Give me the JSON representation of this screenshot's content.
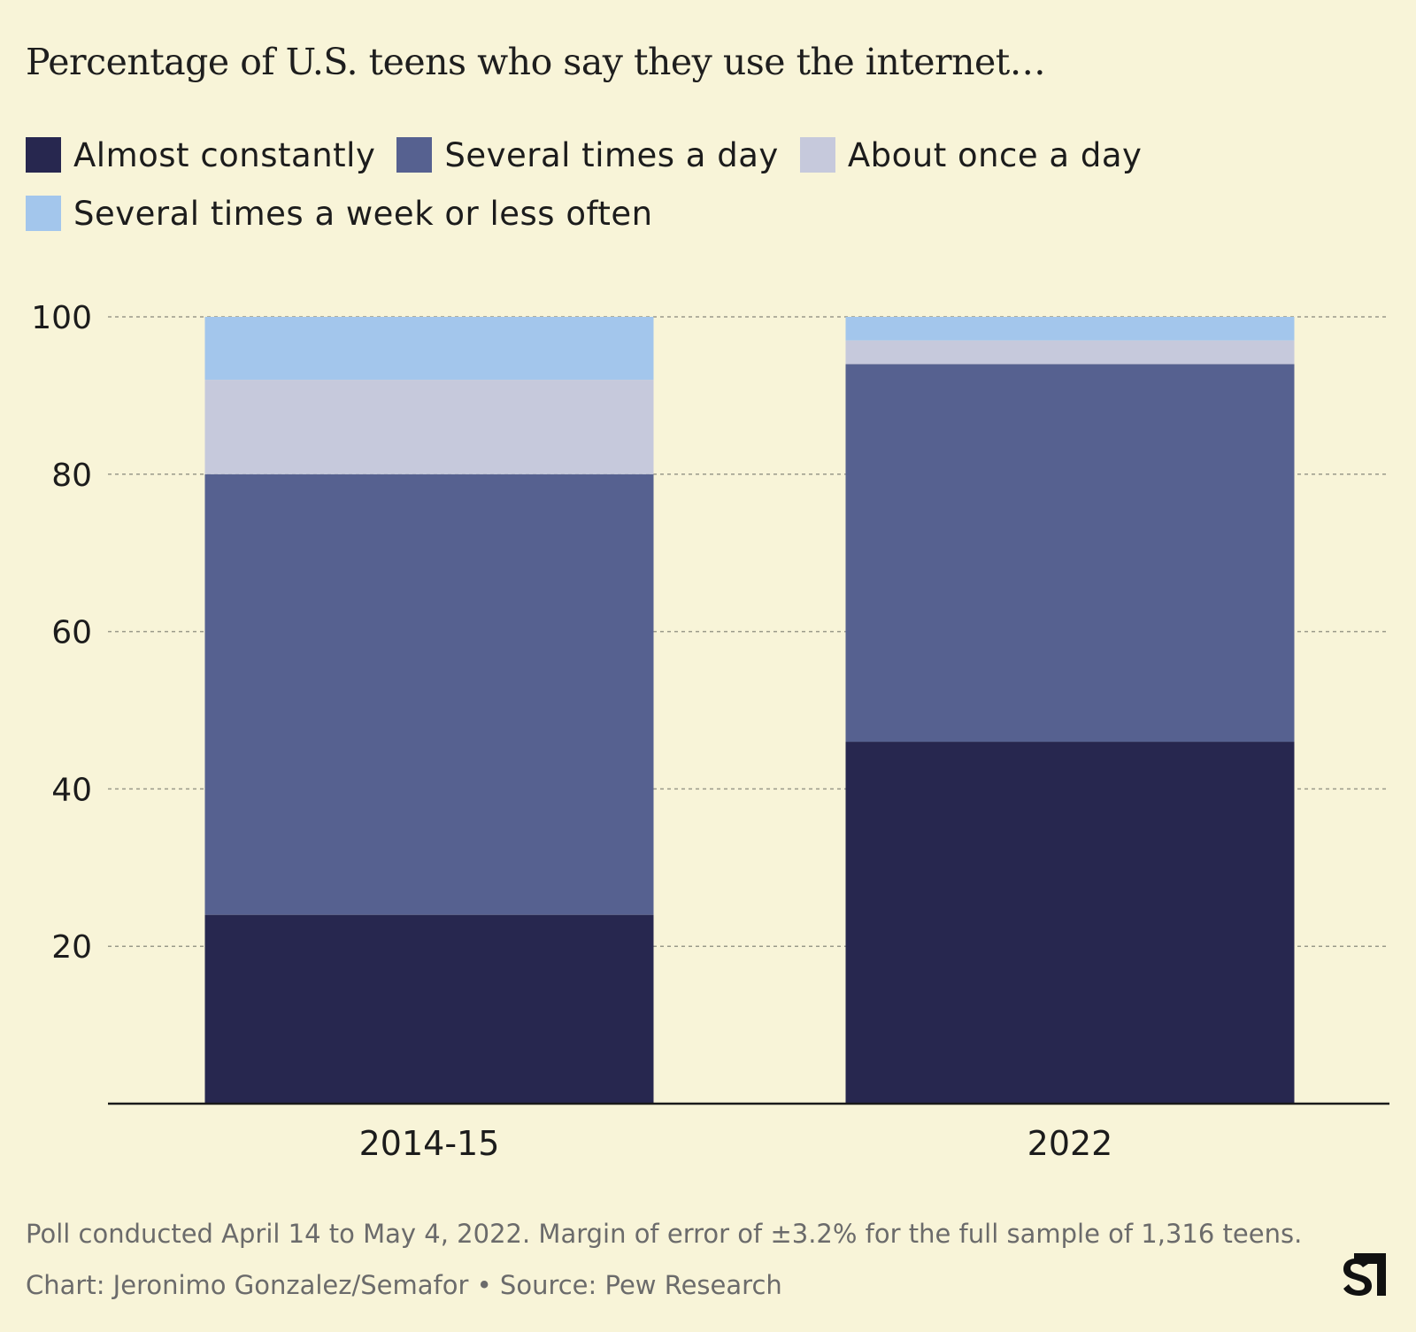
{
  "chart_data": {
    "type": "bar",
    "stacked": true,
    "title": "Percentage of U.S. teens who say they use the internet…",
    "categories": [
      "2014-15",
      "2022"
    ],
    "series": [
      {
        "name": "Almost constantly",
        "color": "#27274f",
        "values": [
          24,
          46
        ]
      },
      {
        "name": "Several times a day",
        "color": "#566190",
        "values": [
          56,
          48
        ]
      },
      {
        "name": "About once a day",
        "color": "#c6c9dc",
        "values": [
          12,
          3
        ]
      },
      {
        "name": "Several times a week or less often",
        "color": "#a3c6ec",
        "values": [
          8,
          3
        ]
      }
    ],
    "ylim": [
      0,
      100
    ],
    "yticks": [
      20,
      40,
      60,
      80,
      100
    ],
    "grid": true,
    "legend_position": "top-left"
  },
  "footer": {
    "note": "Poll conducted April 14 to May 4, 2022. Margin of error of ±3.2% for the full sample of 1,316 teens.",
    "credit": "Chart: Jeronimo Gonzalez/Semafor • Source: Pew Research"
  },
  "logo": {
    "icon": "semafor-logo-icon"
  }
}
